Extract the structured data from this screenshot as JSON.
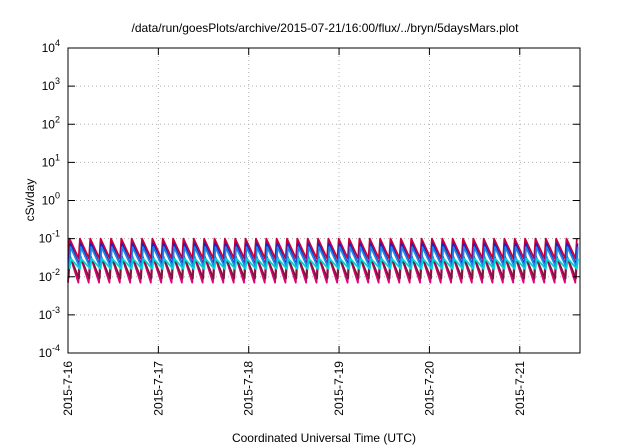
{
  "chart_data": {
    "type": "line",
    "title": "/data/run/goesPlots/archive/2015-07-21/16:00/flux/../bryn/5daysMars.plot",
    "xlabel": "Coordinated Universal Time (UTC)",
    "ylabel": "cSv/day",
    "y_scale": "log",
    "ylim": [
      0.0001,
      10000
    ],
    "y_ticks": [
      {
        "base": "10",
        "exp": "-4"
      },
      {
        "base": "10",
        "exp": "-3"
      },
      {
        "base": "10",
        "exp": "-2"
      },
      {
        "base": "10",
        "exp": "-1"
      },
      {
        "base": "10",
        "exp": "0"
      },
      {
        "base": "10",
        "exp": "1"
      },
      {
        "base": "10",
        "exp": "2"
      },
      {
        "base": "10",
        "exp": "3"
      },
      {
        "base": "10",
        "exp": "4"
      }
    ],
    "xlim": [
      "2015-07-16T00:00",
      "2015-07-21T16:00"
    ],
    "x_ticks": [
      "2015-7-16",
      "2015-7-17",
      "2015-7-18",
      "2015-7-19",
      "2015-7-20",
      "2015-7-21"
    ],
    "grid": true,
    "sawtooth_period_hours": 2.75,
    "series": [
      {
        "color": "#e0007a",
        "peak": 0.04,
        "trough": 0.007
      },
      {
        "color": "#c8003c",
        "peak": 0.1,
        "trough": 0.03
      },
      {
        "color": "#7a1a3a",
        "peak": 0.035,
        "trough": 0.009
      },
      {
        "color": "#2020c0",
        "peak": 0.075,
        "trough": 0.02
      },
      {
        "color": "#1e88e5",
        "peak": 0.06,
        "trough": 0.018
      },
      {
        "color": "#00d4d4",
        "peak": 0.03,
        "trough": 0.016
      }
    ]
  }
}
